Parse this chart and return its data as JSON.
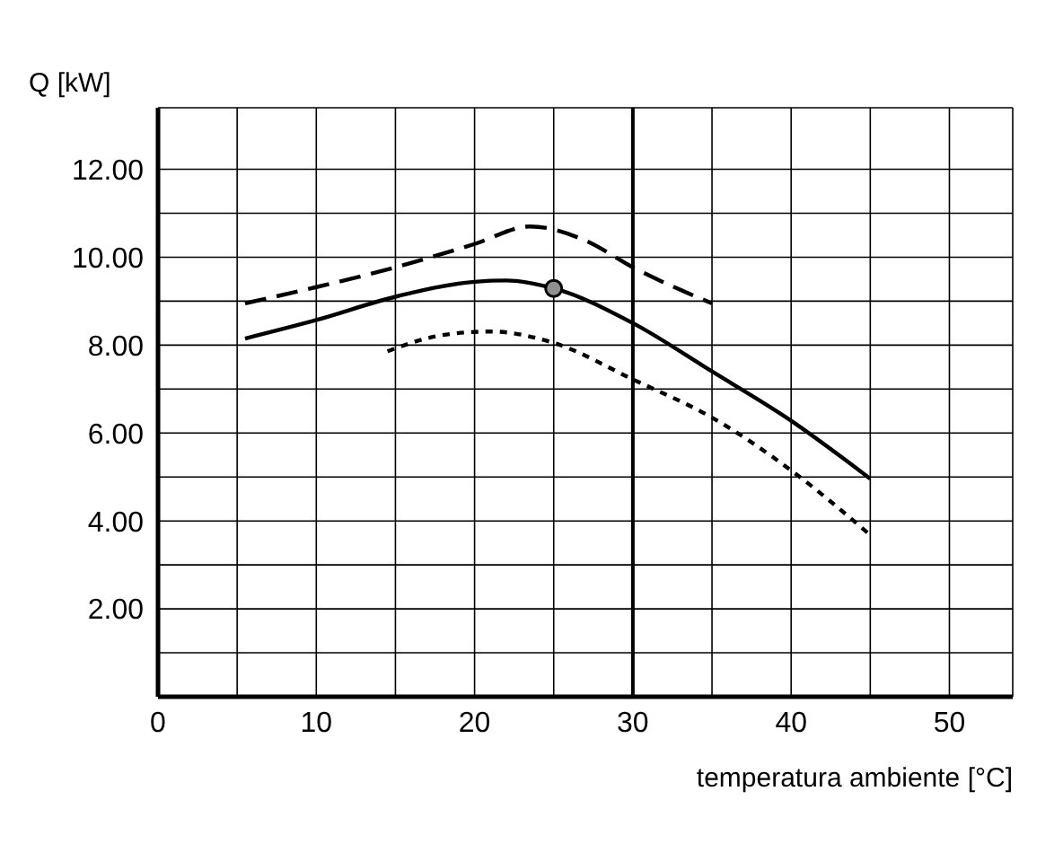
{
  "chart_data": {
    "type": "line",
    "xlabel": "temperatura ambiente [°C]",
    "ylabel": "Q [kW]",
    "xlim": [
      0,
      54
    ],
    "ylim": [
      0,
      13.4
    ],
    "xticks": [
      0,
      {
        "value": 5,
        "label": null
      },
      10,
      {
        "value": 15,
        "label": null
      },
      20,
      {
        "value": 25,
        "label": null
      },
      30,
      {
        "value": 35,
        "label": null
      },
      40,
      {
        "value": 45,
        "label": null
      },
      50
    ],
    "yticks": [
      {
        "value": 1,
        "label": null
      },
      {
        "value": 2,
        "label": "2.00"
      },
      {
        "value": 3,
        "label": null
      },
      {
        "value": 4,
        "label": "4.00"
      },
      {
        "value": 5,
        "label": null
      },
      {
        "value": 6,
        "label": "6.00"
      },
      {
        "value": 7,
        "label": null
      },
      {
        "value": 8,
        "label": "8.00"
      },
      {
        "value": 9,
        "label": null
      },
      {
        "value": 10,
        "label": "10.00"
      },
      {
        "value": 11,
        "label": null
      },
      {
        "value": 12,
        "label": "12.00"
      }
    ],
    "grid": true,
    "ref_lines": [
      {
        "axis": "x",
        "value": 30,
        "color": "#000000"
      }
    ],
    "series": [
      {
        "color": "#000000",
        "line_style": "dashed",
        "marker": "none",
        "x": [
          5.5,
          10,
          15,
          20,
          23.5,
          27,
          30,
          35
        ],
        "values": [
          8.95,
          9.32,
          9.77,
          10.3,
          10.7,
          10.38,
          9.77,
          8.95
        ]
      },
      {
        "color": "#000000",
        "line_style": "solid",
        "marker": "none",
        "x": [
          5.5,
          10,
          15,
          20,
          22,
          25,
          30,
          35,
          40,
          45
        ],
        "values": [
          8.15,
          8.57,
          9.1,
          9.44,
          9.47,
          9.29,
          8.5,
          7.4,
          6.28,
          4.96
        ]
      },
      {
        "color": "#000000",
        "line_style": "dotted",
        "marker": "none",
        "x": [
          14.5,
          18,
          21,
          25,
          30,
          35,
          40,
          45
        ],
        "values": [
          7.86,
          8.23,
          8.31,
          8.05,
          7.22,
          6.35,
          5.15,
          3.68
        ]
      },
      {
        "type": "scatter",
        "color": "#909090",
        "marker": "circle",
        "x": [
          25
        ],
        "values": [
          9.29
        ]
      }
    ]
  }
}
